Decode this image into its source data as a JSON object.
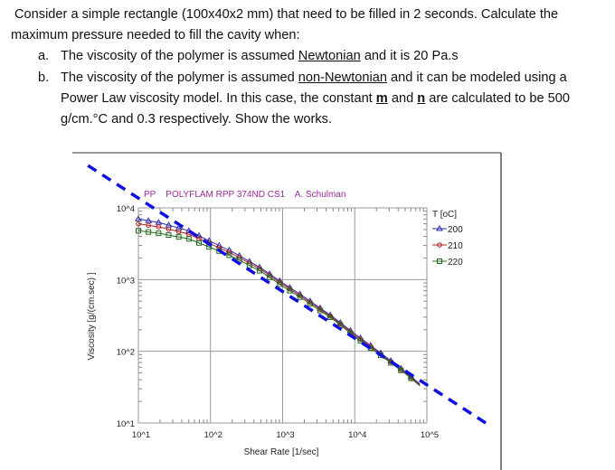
{
  "question": {
    "intro_line1": "Consider a simple rectangle (100x40x2 mm) that need to be filled in 2 seconds. Calculate the",
    "intro_line2": "maximum pressure needed to fill the cavity when:",
    "items": [
      {
        "marker": "a.",
        "pre": "The viscosity of the polymer is assumed ",
        "underlined": "Newtonian",
        "post": " and it is 20 Pa.s"
      },
      {
        "marker": "b.",
        "pre": "The viscosity of the polymer is assumed ",
        "underlined": "non-Newtonian",
        "post": " and it can be modeled using a",
        "line2_pre": "Power Law viscosity model. In this case, the constant ",
        "m": "m",
        "and": " and ",
        "n": "n",
        "line2_post": " are calculated to be 500",
        "line3": "g/cm.°C and 0.3 respectively. Show the works."
      }
    ]
  },
  "chart_data": {
    "type": "line",
    "title": "PP    POLYFLAM RPP 374ND CS1    A. Schulman",
    "xlabel": "Shear Rate [1/sec]",
    "ylabel": "Viscosity [g/(cm.sec) ]",
    "xscale": "log",
    "yscale": "log",
    "xlim": [
      10,
      100000
    ],
    "ylim": [
      10,
      10000
    ],
    "x_ticks": [
      "10^1",
      "10^2",
      "10^3",
      "10^4",
      "10^5"
    ],
    "y_ticks": [
      "10^1",
      "10^2",
      "10^3",
      "10^4"
    ],
    "grid": true,
    "legend_title": "T [oC]",
    "legend_position": "right",
    "x": [
      10,
      20,
      50,
      100,
      200,
      500,
      1000,
      2000,
      5000,
      10000,
      20000,
      50000,
      80000
    ],
    "series": [
      {
        "name": "200",
        "color": "#2a2aa8",
        "marker": "triangle",
        "values": [
          7000,
          6200,
          4800,
          3400,
          2450,
          1450,
          900,
          570,
          300,
          175,
          105,
          52,
          35
        ]
      },
      {
        "name": "210",
        "color": "#b02020",
        "marker": "circle",
        "values": [
          6000,
          5400,
          4300,
          3150,
          2300,
          1380,
          860,
          545,
          290,
          168,
          101,
          50,
          34
        ]
      },
      {
        "name": "220",
        "color": "#1f6a1f",
        "marker": "square",
        "values": [
          4800,
          4400,
          3700,
          2800,
          2100,
          1300,
          810,
          520,
          280,
          160,
          97,
          49,
          33
        ]
      }
    ],
    "overlay_line": {
      "style": "dashed",
      "color": "#1010e0",
      "x": [
        2.0,
        720000
      ],
      "y": [
        39000,
        9.4
      ]
    },
    "title_color": "#9a2a9a"
  }
}
